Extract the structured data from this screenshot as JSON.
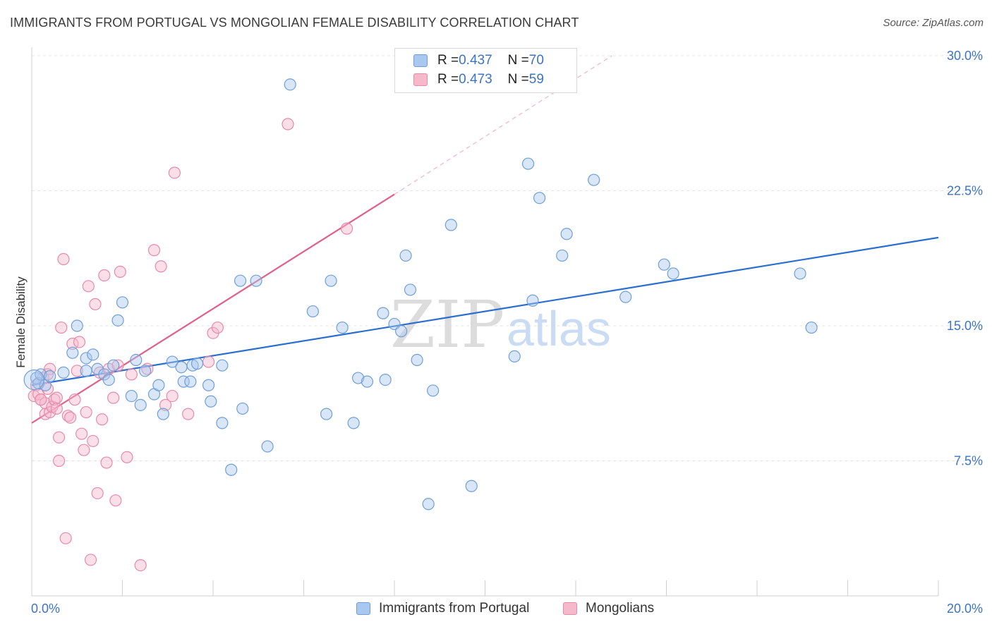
{
  "header": {
    "title": "IMMIGRANTS FROM PORTUGAL VS MONGOLIAN FEMALE DISABILITY CORRELATION CHART",
    "source": "Source: ZipAtlas.com"
  },
  "watermark": {
    "zip": "ZIP",
    "atlas": "atlas"
  },
  "legend_top": {
    "rows": [
      {
        "r_label": "R = ",
        "r_value": "0.437",
        "n_label": "N = ",
        "n_value": "70"
      },
      {
        "r_label": "R = ",
        "r_value": "0.473",
        "n_label": "N = ",
        "n_value": "59"
      }
    ]
  },
  "colors": {
    "blue_fill": "#a9c8f0",
    "blue_stroke": "#6f9fd8",
    "blue_line": "#2a6fd0",
    "pink_fill": "#f6b8cb",
    "pink_stroke": "#e88aa8",
    "pink_line": "#e0608a",
    "grid": "#e3e3e3",
    "tick_label": "#3b74c6"
  },
  "chart_data": {
    "type": "scatter",
    "title": "IMMIGRANTS FROM PORTUGAL VS MONGOLIAN FEMALE DISABILITY CORRELATION CHART",
    "xlabel": "",
    "ylabel": "Female Disability",
    "xlim": [
      0,
      20
    ],
    "ylim": [
      0,
      30
    ],
    "x_tick_labels": [
      "0.0%",
      "20.0%"
    ],
    "y_ticks": [
      7.5,
      15.0,
      22.5,
      30.0
    ],
    "y_tick_labels": [
      "7.5%",
      "15.0%",
      "22.5%",
      "30.0%"
    ],
    "grid": true,
    "legend_position": "top-center",
    "series": [
      {
        "name": "Immigrants from Portugal",
        "r": 0.437,
        "n": 70,
        "trend": {
          "x": [
            0,
            20
          ],
          "y": [
            11.7,
            19.9
          ]
        },
        "points": [
          [
            0.1,
            12.1
          ],
          [
            0.15,
            11.8
          ],
          [
            0.2,
            12.3
          ],
          [
            0.3,
            11.7
          ],
          [
            0.4,
            12.2
          ],
          [
            0.7,
            12.4
          ],
          [
            0.9,
            13.5
          ],
          [
            1.0,
            15.0
          ],
          [
            1.2,
            12.5
          ],
          [
            1.2,
            13.2
          ],
          [
            1.35,
            13.4
          ],
          [
            1.45,
            12.6
          ],
          [
            1.6,
            12.3
          ],
          [
            1.7,
            12.0
          ],
          [
            1.8,
            12.8
          ],
          [
            1.9,
            15.3
          ],
          [
            2.0,
            16.3
          ],
          [
            2.2,
            11.1
          ],
          [
            2.3,
            13.1
          ],
          [
            2.4,
            10.6
          ],
          [
            2.5,
            12.5
          ],
          [
            2.7,
            11.2
          ],
          [
            2.8,
            11.7
          ],
          [
            2.9,
            10.1
          ],
          [
            3.1,
            13.0
          ],
          [
            3.3,
            12.7
          ],
          [
            3.35,
            11.9
          ],
          [
            3.5,
            11.9
          ],
          [
            3.55,
            12.8
          ],
          [
            3.65,
            12.9
          ],
          [
            3.9,
            11.7
          ],
          [
            3.95,
            10.8
          ],
          [
            4.2,
            12.8
          ],
          [
            4.2,
            9.6
          ],
          [
            4.4,
            7.0
          ],
          [
            4.6,
            17.5
          ],
          [
            4.65,
            10.4
          ],
          [
            4.95,
            17.5
          ],
          [
            5.2,
            8.3
          ],
          [
            5.7,
            28.4
          ],
          [
            6.2,
            15.8
          ],
          [
            6.5,
            10.1
          ],
          [
            6.6,
            17.5
          ],
          [
            6.85,
            14.9
          ],
          [
            7.1,
            9.6
          ],
          [
            7.2,
            12.1
          ],
          [
            7.4,
            11.9
          ],
          [
            7.75,
            15.7
          ],
          [
            7.8,
            12.0
          ],
          [
            8.0,
            15.1
          ],
          [
            8.15,
            14.7
          ],
          [
            8.25,
            18.9
          ],
          [
            8.35,
            17.0
          ],
          [
            8.5,
            13.1
          ],
          [
            8.75,
            5.1
          ],
          [
            8.85,
            11.4
          ],
          [
            9.25,
            20.6
          ],
          [
            9.7,
            6.1
          ],
          [
            10.65,
            13.3
          ],
          [
            10.95,
            24.0
          ],
          [
            11.05,
            16.4
          ],
          [
            11.2,
            22.1
          ],
          [
            11.7,
            18.9
          ],
          [
            11.8,
            20.1
          ],
          [
            12.4,
            23.1
          ],
          [
            13.1,
            16.6
          ],
          [
            13.95,
            18.4
          ],
          [
            14.15,
            17.9
          ],
          [
            16.95,
            17.9
          ],
          [
            17.2,
            14.9
          ]
        ]
      },
      {
        "name": "Mongolians",
        "r": 0.473,
        "n": 59,
        "trend": {
          "x": [
            0,
            8
          ],
          "y": [
            9.6,
            22.3
          ]
        },
        "trend_dashed": {
          "x": [
            8,
            12.8
          ],
          "y": [
            22.3,
            30.0
          ]
        },
        "points": [
          [
            0.05,
            11.1
          ],
          [
            0.1,
            11.7
          ],
          [
            0.15,
            11.2
          ],
          [
            0.2,
            10.9
          ],
          [
            0.25,
            12.1
          ],
          [
            0.3,
            10.7
          ],
          [
            0.3,
            10.1
          ],
          [
            0.35,
            11.5
          ],
          [
            0.4,
            10.2
          ],
          [
            0.4,
            12.6
          ],
          [
            0.45,
            10.5
          ],
          [
            0.5,
            10.9
          ],
          [
            0.55,
            11.0
          ],
          [
            0.55,
            10.4
          ],
          [
            0.6,
            7.5
          ],
          [
            0.6,
            8.8
          ],
          [
            0.65,
            14.9
          ],
          [
            0.7,
            18.7
          ],
          [
            0.75,
            3.2
          ],
          [
            0.8,
            10.0
          ],
          [
            0.85,
            9.9
          ],
          [
            0.9,
            14.0
          ],
          [
            0.95,
            10.9
          ],
          [
            1.0,
            12.5
          ],
          [
            1.05,
            14.1
          ],
          [
            1.1,
            9.0
          ],
          [
            1.15,
            8.1
          ],
          [
            1.2,
            10.2
          ],
          [
            1.25,
            17.2
          ],
          [
            1.3,
            2.0
          ],
          [
            1.35,
            8.6
          ],
          [
            1.4,
            16.2
          ],
          [
            1.45,
            5.7
          ],
          [
            1.5,
            12.4
          ],
          [
            1.55,
            9.8
          ],
          [
            1.6,
            17.8
          ],
          [
            1.65,
            7.4
          ],
          [
            1.7,
            12.6
          ],
          [
            1.8,
            11.0
          ],
          [
            1.85,
            5.3
          ],
          [
            1.9,
            12.8
          ],
          [
            1.95,
            18.0
          ],
          [
            2.1,
            7.7
          ],
          [
            2.2,
            12.3
          ],
          [
            2.4,
            1.7
          ],
          [
            2.55,
            12.6
          ],
          [
            2.7,
            19.2
          ],
          [
            2.85,
            18.3
          ],
          [
            2.95,
            10.6
          ],
          [
            3.1,
            11.1
          ],
          [
            3.15,
            23.5
          ],
          [
            3.45,
            10.1
          ],
          [
            3.9,
            13.0
          ],
          [
            4.0,
            14.6
          ],
          [
            4.1,
            14.9
          ],
          [
            5.65,
            26.2
          ],
          [
            6.95,
            20.4
          ],
          [
            0.2,
            10.9
          ],
          [
            0.35,
            12.3
          ]
        ]
      }
    ]
  },
  "legend_bottom": {
    "items": [
      "Immigrants from Portugal",
      "Mongolians"
    ]
  }
}
